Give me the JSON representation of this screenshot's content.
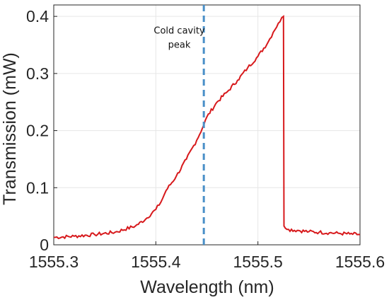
{
  "chart_data": {
    "type": "line",
    "xlabel": "Wavelength (nm)",
    "ylabel": "Transmission (mW)",
    "xlim": [
      1555.3,
      1555.6
    ],
    "ylim": [
      0,
      0.42
    ],
    "xticks": [
      1555.3,
      1555.4,
      1555.5,
      1555.6
    ],
    "xtick_labels": [
      "1555.3",
      "1555.4",
      "1555.5",
      "1555.6"
    ],
    "yticks": [
      0,
      0.1,
      0.2,
      0.3,
      0.4
    ],
    "ytick_labels": [
      "0",
      "0.1",
      "0.2",
      "0.3",
      "0.4"
    ],
    "grid": true,
    "series": [
      {
        "color": "#d7191c",
        "x": [
          1555.3,
          1555.32,
          1555.34,
          1555.36,
          1555.38,
          1555.39,
          1555.4,
          1555.405,
          1555.41,
          1555.42,
          1555.43,
          1555.44,
          1555.447,
          1555.45,
          1555.46,
          1555.47,
          1555.48,
          1555.49,
          1555.5,
          1555.51,
          1555.515,
          1555.52,
          1555.525,
          1555.5255,
          1555.53,
          1555.54,
          1555.55,
          1555.56,
          1555.57,
          1555.58,
          1555.59,
          1555.6
        ],
        "y": [
          0.013,
          0.015,
          0.018,
          0.022,
          0.033,
          0.045,
          0.062,
          0.075,
          0.095,
          0.12,
          0.15,
          0.183,
          0.21,
          0.224,
          0.25,
          0.268,
          0.288,
          0.31,
          0.33,
          0.355,
          0.372,
          0.388,
          0.4,
          0.033,
          0.027,
          0.025,
          0.023,
          0.022,
          0.021,
          0.02,
          0.019,
          0.018
        ]
      }
    ],
    "vline": {
      "x": 1555.447,
      "color": "#4a90c8",
      "style": "dashed"
    },
    "annotation": {
      "lines": [
        "Cold cavity",
        "peak"
      ],
      "x": 1555.423,
      "y": 0.37
    }
  }
}
